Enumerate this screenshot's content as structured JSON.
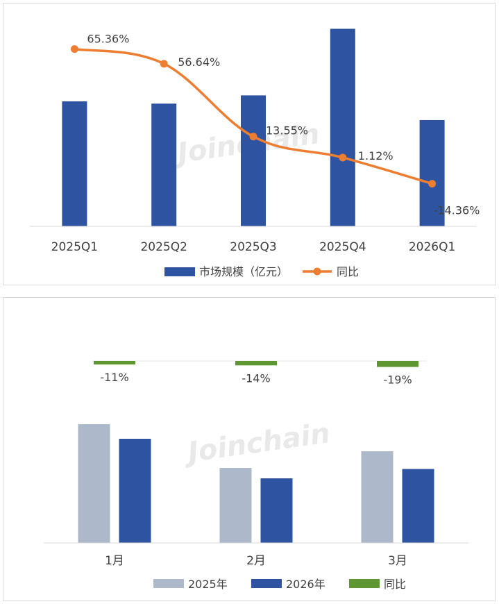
{
  "watermark": "Joinchain",
  "chart_data": [
    {
      "type": "bar",
      "categories": [
        "2025Q1",
        "2025Q2",
        "2025Q3",
        "2025Q4",
        "2026Q1"
      ],
      "series": [
        {
          "name": "市场规模（亿元）",
          "kind": "bar",
          "color": "#2E54A1",
          "values": [
            167,
            164,
            175,
            264,
            142
          ]
        },
        {
          "name": "同比",
          "kind": "line",
          "color": "#ED7D31",
          "values": [
            65.36,
            56.64,
            13.55,
            1.12,
            -14.36
          ],
          "labels": [
            "65.36%",
            "56.64%",
            "13.55%",
            "1.12%",
            "-14.36%"
          ]
        }
      ],
      "ylim": [
        0,
        270
      ],
      "ylim_right": [
        -40,
        80
      ],
      "legend_position": "bottom",
      "grid": false
    },
    {
      "type": "bar",
      "categories": [
        "1月",
        "2月",
        "3月"
      ],
      "series": [
        {
          "name": "2025年",
          "kind": "bar",
          "color": "#ADB9CA",
          "values": [
            114,
            72,
            88
          ]
        },
        {
          "name": "2026年",
          "kind": "bar",
          "color": "#2E54A1",
          "values": [
            100,
            62,
            71
          ]
        },
        {
          "name": "同比",
          "kind": "bar_top",
          "color": "#5E9732",
          "values": [
            -11,
            -14,
            -19
          ],
          "labels": [
            "-11%",
            "-14%",
            "-19%"
          ]
        }
      ],
      "ylim": [
        0,
        130
      ],
      "legend_position": "bottom",
      "grid": false
    }
  ]
}
